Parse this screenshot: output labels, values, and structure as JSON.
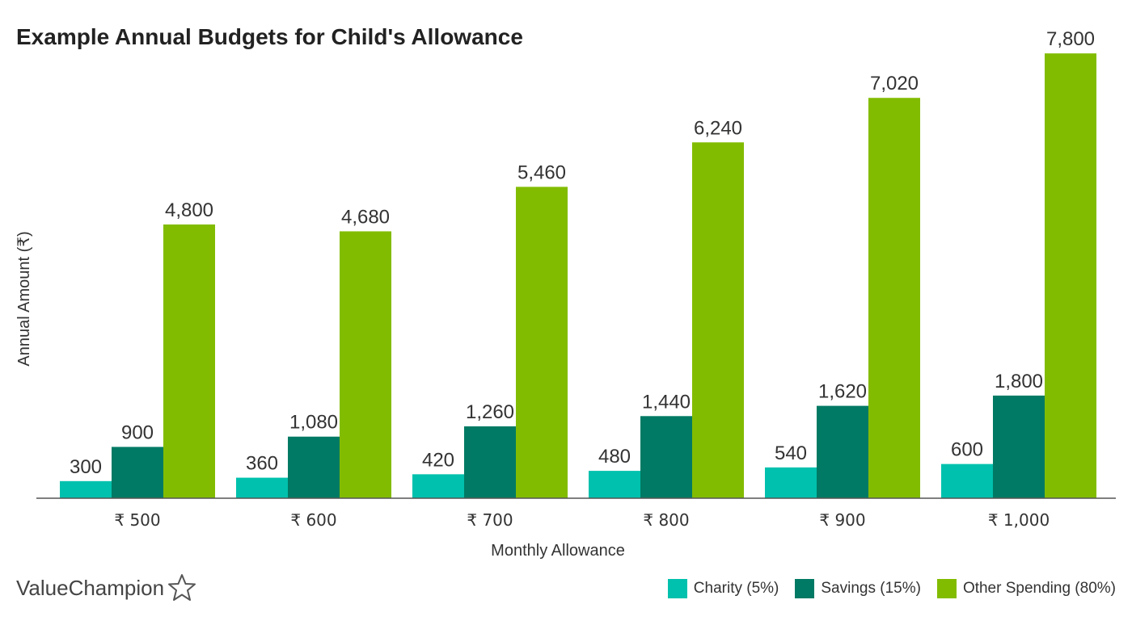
{
  "title": "Example Annual Budgets for Child's Allowance",
  "brand": "ValueChampion",
  "chart_data": {
    "type": "bar",
    "title": "Example Annual Budgets for Child's Allowance",
    "xlabel": "Monthly Allowance",
    "ylabel": "Annual Amount (₹)",
    "categories": [
      "₹ 500",
      "₹ 600",
      "₹ 700",
      "₹ 800",
      "₹ 900",
      "₹ 1,000"
    ],
    "ylim": [
      0,
      8000
    ],
    "grid": false,
    "legend_position": "bottom-right",
    "series": [
      {
        "name": "Charity (5%)",
        "color": "#00c1ad",
        "values": [
          300,
          360,
          420,
          480,
          540,
          600
        ],
        "labels": [
          "300",
          "360",
          "420",
          "480",
          "540",
          "600"
        ]
      },
      {
        "name": "Savings (15%)",
        "color": "#007a64",
        "values": [
          900,
          1080,
          1260,
          1440,
          1620,
          1800
        ],
        "labels": [
          "900",
          "1,080",
          "1,260",
          "1,440",
          "1,620",
          "1,800"
        ]
      },
      {
        "name": "Other Spending (80%)",
        "color": "#82bc00",
        "values": [
          4800,
          4680,
          5460,
          6240,
          7020,
          7800
        ],
        "labels": [
          "4,800",
          "4,680",
          "5,460",
          "6,240",
          "7,020",
          "7,800"
        ]
      }
    ]
  }
}
